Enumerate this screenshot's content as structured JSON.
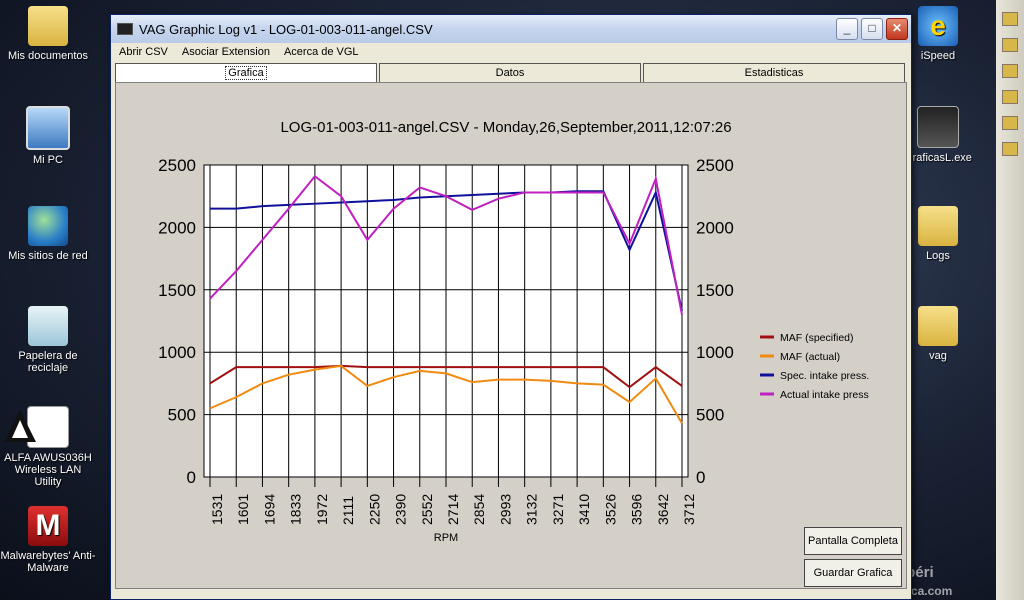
{
  "desktop": {
    "icons_left": [
      {
        "label": "Mis documentos"
      },
      {
        "label": "Mi PC"
      },
      {
        "label": "Mis sitios de red"
      },
      {
        "label": "Papelera de reciclaje"
      },
      {
        "label": "ALFA AWUS036H Wireless LAN Utility"
      },
      {
        "label": "Malwarebytes' Anti-Malware"
      }
    ],
    "icons_right": [
      {
        "label": "iSpeed"
      },
      {
        "label": "GraficasL.exe"
      },
      {
        "label": "Logs"
      },
      {
        "label": "vag"
      }
    ],
    "watermark": {
      "line1": "Club Audisport Ibéri",
      "line2": "www.audisport-iberica.com"
    }
  },
  "window": {
    "title": "VAG Graphic Log  v1 -  LOG-01-003-011-angel.CSV",
    "menu": [
      "Abrir CSV",
      "Asociar Extension",
      "Acerca de VGL"
    ],
    "tabs": [
      "Grafica",
      "Datos",
      "Estadisticas"
    ],
    "buttons": {
      "fullscreen": "Pantalla Completa",
      "save": "Guardar Grafica"
    }
  },
  "chart_data": {
    "type": "line",
    "title": "LOG-01-003-011-angel.CSV - Monday,26,September,2011,12:07:26",
    "xlabel": "RPM",
    "ylim": [
      0,
      2500
    ],
    "yticks": [
      0,
      500,
      1000,
      1500,
      2000,
      2500
    ],
    "categories": [
      "1531",
      "1601",
      "1694",
      "1833",
      "1972",
      "2111",
      "2250",
      "2390",
      "2552",
      "2714",
      "2854",
      "2993",
      "3132",
      "3271",
      "3410",
      "3526",
      "3596",
      "3642",
      "3712"
    ],
    "x_index": [
      0,
      1,
      2,
      3,
      4,
      5,
      6,
      7,
      8,
      9,
      10,
      11,
      12,
      13,
      14,
      15,
      16,
      17,
      18
    ],
    "series": [
      {
        "name": "MAF (specified)",
        "color": "#a01010",
        "values": [
          750,
          880,
          880,
          880,
          880,
          890,
          880,
          880,
          880,
          880,
          880,
          880,
          880,
          880,
          880,
          880,
          720,
          880,
          730
        ]
      },
      {
        "name": "MAF (actual)",
        "color": "#f08a10",
        "values": [
          550,
          640,
          750,
          820,
          860,
          890,
          730,
          800,
          850,
          830,
          760,
          780,
          780,
          770,
          750,
          740,
          600,
          790,
          430
        ]
      },
      {
        "name": "Spec. intake press.",
        "color": "#10109a",
        "values": [
          2150,
          2150,
          2170,
          2180,
          2190,
          2200,
          2210,
          2220,
          2240,
          2250,
          2260,
          2270,
          2280,
          2280,
          2290,
          2290,
          1820,
          2280,
          1330
        ]
      },
      {
        "name": "Actual intake press",
        "color": "#c020c0",
        "values": [
          1430,
          1650,
          1900,
          2150,
          2410,
          2250,
          1900,
          2150,
          2320,
          2250,
          2140,
          2230,
          2280,
          2280,
          2280,
          2280,
          1870,
          2390,
          1300
        ]
      }
    ]
  }
}
